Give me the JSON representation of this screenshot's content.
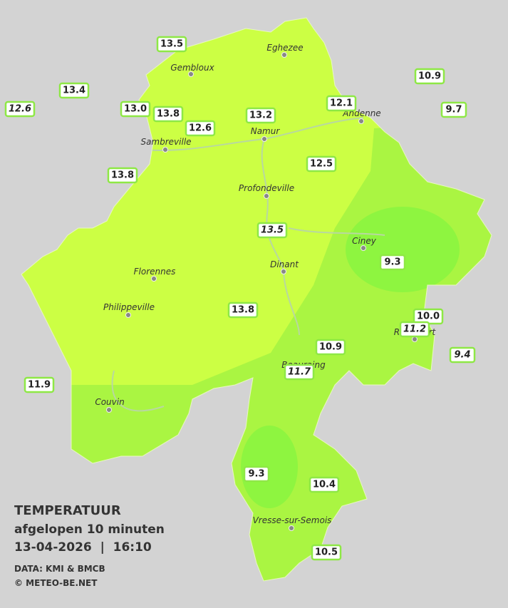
{
  "legend": {
    "title": "TEMPERATUUR",
    "subtitle": "afgelopen 10 minuten",
    "timestamp": "13-04-2026  |  16:10",
    "source": "DATA: KMI & BMCB",
    "copyright": "© METEO-BE.NET"
  },
  "stations": [
    {
      "label": "13.5",
      "italic": false
    },
    {
      "label": "13.4",
      "italic": false
    },
    {
      "label": "12.6",
      "italic": true
    },
    {
      "label": "13.0",
      "italic": false
    },
    {
      "label": "13.8",
      "italic": false
    },
    {
      "label": "12.6",
      "italic": false
    },
    {
      "label": "13.2",
      "italic": false
    },
    {
      "label": "12.1",
      "italic": false
    },
    {
      "label": "10.9",
      "italic": false
    },
    {
      "label": "9.7",
      "italic": false
    },
    {
      "label": "13.8",
      "italic": false
    },
    {
      "label": "12.5",
      "italic": false
    },
    {
      "label": "13.5",
      "italic": true
    },
    {
      "label": "9.3",
      "italic": false
    },
    {
      "label": "13.8",
      "italic": false
    },
    {
      "label": "10.0",
      "italic": false
    },
    {
      "label": "11.2",
      "italic": true
    },
    {
      "label": "9.4",
      "italic": true
    },
    {
      "label": "10.9",
      "italic": false
    },
    {
      "label": "11.7",
      "italic": true
    },
    {
      "label": "11.9",
      "italic": false
    },
    {
      "label": "9.3",
      "italic": false
    },
    {
      "label": "10.4",
      "italic": false
    },
    {
      "label": "10.5",
      "italic": false
    }
  ],
  "cities": [
    "Eghezee",
    "Gembloux",
    "Andenne",
    "Namur",
    "Sambreville",
    "Profondeville",
    "Ciney",
    "Dinant",
    "Florennes",
    "Philippeville",
    "Rochefort",
    "Beauraing",
    "Couvin",
    "Vresse-sur-Semois"
  ]
}
